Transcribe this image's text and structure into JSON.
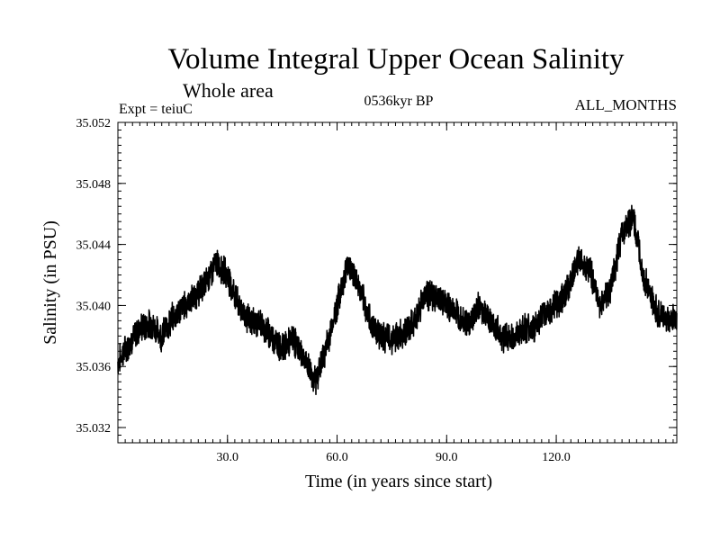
{
  "chart_data": {
    "type": "line",
    "title": "Volume Integral Upper Ocean Salinity",
    "subtitle": "Whole area",
    "annotations": {
      "experiment": "Expt = teiuC",
      "period": "0536kyr BP",
      "months": "ALL_MONTHS"
    },
    "xlabel": "Time (in years since start)",
    "ylabel": "Salinity (in PSU)",
    "xlim": [
      0,
      153
    ],
    "ylim": [
      35.031,
      35.052
    ],
    "x_ticks": [
      30,
      60,
      90,
      120
    ],
    "x_tick_labels": [
      "30.0",
      "60.0",
      "90.0",
      "120.0"
    ],
    "y_ticks": [
      35.032,
      35.036,
      35.04,
      35.044,
      35.048,
      35.052
    ],
    "y_tick_labels": [
      "35.032",
      "35.036",
      "35.040",
      "35.044",
      "35.048",
      "35.052"
    ],
    "grid": false,
    "series": [
      {
        "name": "salinity",
        "color": "#000000",
        "x": [
          0,
          3,
          6,
          9,
          12,
          15,
          18,
          21,
          24,
          27,
          30,
          33,
          36,
          39,
          42,
          45,
          48,
          51,
          54,
          57,
          60,
          63,
          66,
          69,
          72,
          75,
          78,
          81,
          84,
          87,
          90,
          93,
          96,
          99,
          102,
          105,
          108,
          111,
          114,
          117,
          120,
          123,
          126,
          129,
          132,
          135,
          138,
          141,
          144,
          147,
          150,
          153
        ],
        "values": [
          35.0363,
          35.0375,
          35.0385,
          35.0388,
          35.038,
          35.0392,
          35.04,
          35.0405,
          35.0415,
          35.0428,
          35.042,
          35.04,
          35.039,
          35.0388,
          35.038,
          35.0372,
          35.0378,
          35.0365,
          35.035,
          35.0372,
          35.04,
          35.0428,
          35.0412,
          35.039,
          35.038,
          35.0378,
          35.0382,
          35.0388,
          35.0408,
          35.0405,
          35.04,
          35.0395,
          35.0388,
          35.04,
          35.039,
          35.038,
          35.0378,
          35.0385,
          35.0385,
          35.0395,
          35.04,
          35.041,
          35.043,
          35.0425,
          35.04,
          35.0412,
          35.0448,
          35.0458,
          35.0418,
          35.0398,
          35.039,
          35.0392
        ]
      }
    ]
  }
}
